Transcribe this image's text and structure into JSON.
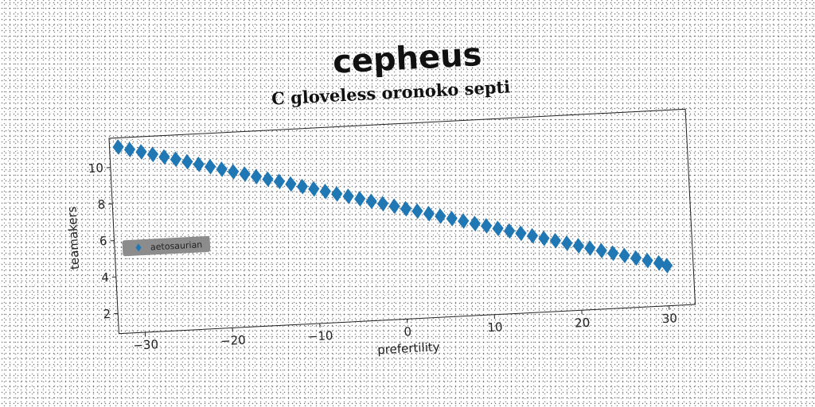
{
  "figure_title": "cepheus",
  "chart_data": {
    "type": "scatter",
    "title": "C gloveless oronoko septi",
    "xlabel": "prefertility",
    "ylabel": "teamakers",
    "xlim": [
      -33,
      33
    ],
    "ylim": [
      0.9,
      11.6
    ],
    "x_ticks": [
      -30,
      -20,
      -10,
      0,
      10,
      20,
      30
    ],
    "y_ticks": [
      2,
      4,
      6,
      8,
      10
    ],
    "grid": false,
    "legend_position": "center-left",
    "series": [
      {
        "name": "aetosaurian",
        "marker": "diamond",
        "color": "#1f77b4",
        "x": [
          -32,
          -30.7,
          -29.4,
          -28.1,
          -26.8,
          -25.5,
          -24.2,
          -22.9,
          -21.6,
          -20.3,
          -19,
          -17.7,
          -16.4,
          -15.1,
          -13.8,
          -12.5,
          -11.2,
          -9.9,
          -8.6,
          -7.3,
          -6,
          -4.7,
          -3.4,
          -2.1,
          -0.8,
          0.5,
          1.8,
          3.1,
          4.4,
          5.7,
          7,
          8.3,
          9.6,
          10.9,
          12.2,
          13.5,
          14.8,
          16.1,
          17.4,
          18.7,
          20,
          21.3,
          22.6,
          23.9,
          25.2,
          26.5,
          27.8,
          29.1,
          30
        ],
        "y": [
          11.1,
          10.93,
          10.77,
          10.6,
          10.43,
          10.27,
          10.1,
          9.93,
          9.77,
          9.6,
          9.43,
          9.27,
          9.1,
          8.93,
          8.77,
          8.6,
          8.43,
          8.27,
          8.1,
          7.93,
          7.77,
          7.6,
          7.43,
          7.27,
          7.1,
          6.93,
          6.77,
          6.6,
          6.43,
          6.27,
          6.1,
          5.93,
          5.77,
          5.6,
          5.43,
          5.27,
          5.1,
          4.93,
          4.77,
          4.6,
          4.43,
          4.27,
          4.1,
          3.93,
          3.77,
          3.6,
          3.43,
          3.27,
          3.1
        ]
      }
    ]
  }
}
